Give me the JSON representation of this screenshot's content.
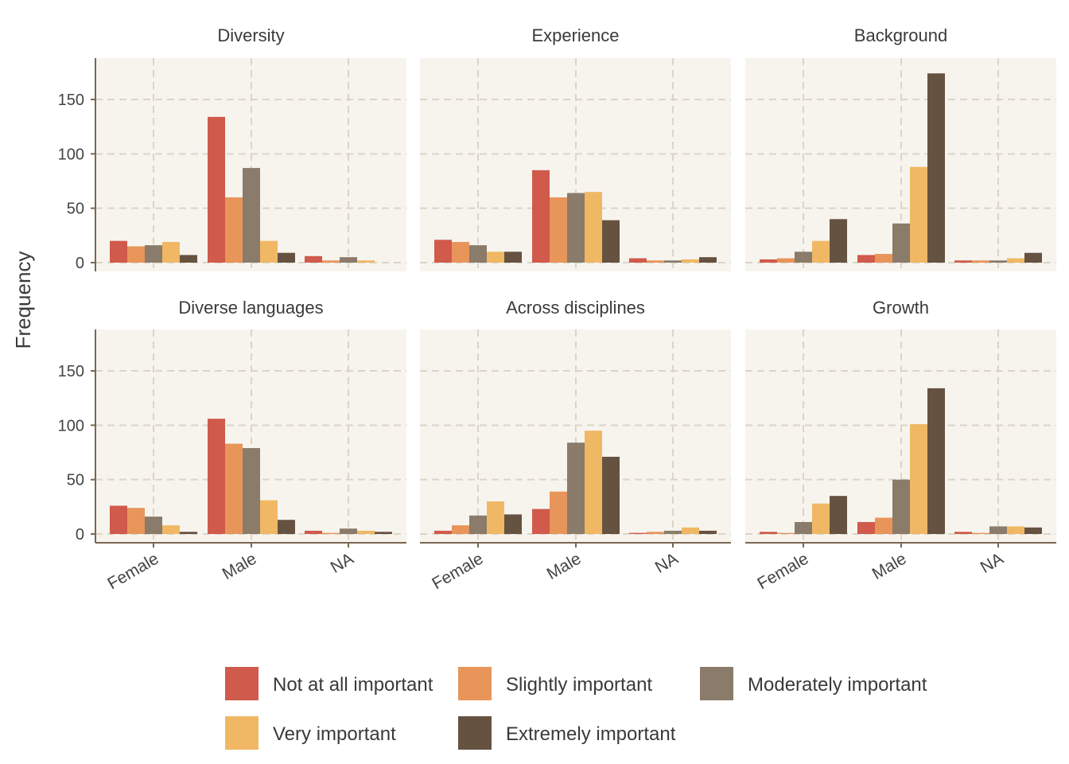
{
  "chart_data": {
    "type": "bar",
    "ylabel": "Frequency",
    "xlabel": "",
    "ylim": [
      0,
      180
    ],
    "yticks": [
      0,
      50,
      100,
      150
    ],
    "grid": true,
    "legend_position": "bottom",
    "categories": [
      "Female",
      "Male",
      "NA"
    ],
    "levels": [
      {
        "name": "Not at all important",
        "color": "#D05A4B"
      },
      {
        "name": "Slightly important",
        "color": "#E8955A"
      },
      {
        "name": "Moderately important",
        "color": "#8A7B6A"
      },
      {
        "name": "Very important",
        "color": "#F0B865"
      },
      {
        "name": "Extremely important",
        "color": "#665241"
      }
    ],
    "panels": [
      {
        "title": "Diversity",
        "values": [
          [
            20,
            15,
            16,
            19,
            7
          ],
          [
            134,
            60,
            87,
            20,
            9
          ],
          [
            6,
            2,
            5,
            2,
            0
          ]
        ]
      },
      {
        "title": "Experience",
        "values": [
          [
            21,
            19,
            16,
            10,
            10
          ],
          [
            85,
            60,
            64,
            65,
            39
          ],
          [
            4,
            2,
            2,
            3,
            5
          ]
        ]
      },
      {
        "title": "Background",
        "values": [
          [
            3,
            4,
            10,
            20,
            40
          ],
          [
            7,
            8,
            36,
            88,
            174
          ],
          [
            2,
            2,
            2,
            4,
            9
          ]
        ]
      },
      {
        "title": "Diverse languages",
        "values": [
          [
            26,
            24,
            16,
            8,
            2
          ],
          [
            106,
            83,
            79,
            31,
            13
          ],
          [
            3,
            1,
            5,
            3,
            2
          ]
        ]
      },
      {
        "title": "Across disciplines",
        "values": [
          [
            3,
            8,
            17,
            30,
            18
          ],
          [
            23,
            39,
            84,
            95,
            71
          ],
          [
            1,
            2,
            3,
            6,
            3
          ]
        ]
      },
      {
        "title": "Growth",
        "values": [
          [
            2,
            1,
            11,
            28,
            35
          ],
          [
            11,
            15,
            50,
            101,
            134
          ],
          [
            2,
            1,
            7,
            7,
            6
          ]
        ]
      }
    ]
  },
  "colors": {
    "panel_background": "#F7F4EE",
    "grid": "#DAD5C7",
    "axis": "#7A6752"
  }
}
